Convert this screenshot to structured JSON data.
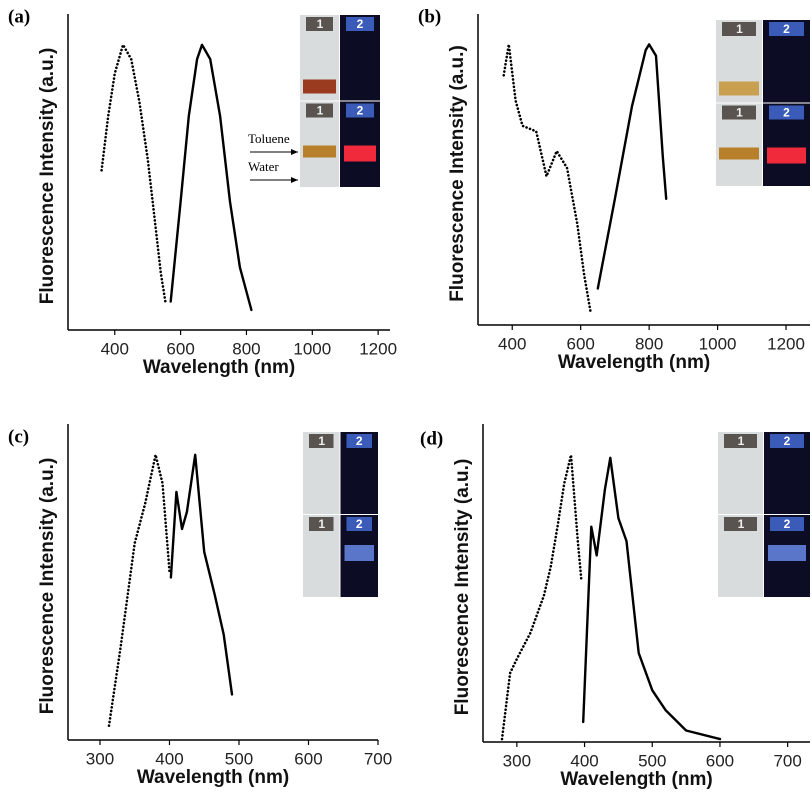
{
  "chart_data": [
    {
      "type": "line",
      "panel_label": "(a)",
      "xlabel": "Wavelength (nm)",
      "ylabel": "Fluorescence Intensity (a.u.)",
      "xlim": [
        258,
        1236
      ],
      "xticks": [
        400,
        600,
        800,
        1000,
        1200
      ],
      "ylim": [
        0,
        1.08
      ],
      "series": [
        {
          "color": "#000000",
          "dash": "dotted",
          "x": [
            360,
            380,
            400,
            425,
            450,
            475,
            500,
            520,
            540,
            555
          ],
          "values": [
            0.56,
            0.75,
            0.9,
            1.0,
            0.95,
            0.8,
            0.6,
            0.4,
            0.2,
            0.09
          ]
        },
        {
          "color": "#000000",
          "dash": "solid",
          "x": [
            570,
            600,
            625,
            650,
            665,
            690,
            720,
            750,
            780,
            815
          ],
          "values": [
            0.1,
            0.45,
            0.75,
            0.95,
            1.0,
            0.95,
            0.75,
            0.45,
            0.22,
            0.07
          ]
        }
      ],
      "inset_labels": [
        "1",
        "2",
        "1",
        "2"
      ],
      "annotations": [
        "Toluene",
        "Water"
      ]
    },
    {
      "type": "line",
      "panel_label": "(b)",
      "xlabel": "Wavelength (nm)",
      "ylabel": "Fluorescence Intensity (a.u.)",
      "xlim": [
        300,
        1270
      ],
      "xticks": [
        400,
        600,
        800,
        1000,
        1200
      ],
      "ylim": [
        0,
        1.08
      ],
      "series": [
        {
          "color": "#000000",
          "dash": "dotted",
          "x": [
            375,
            390,
            410,
            430,
            470,
            500,
            530,
            560,
            590,
            610,
            630
          ],
          "values": [
            0.89,
            1.0,
            0.8,
            0.71,
            0.69,
            0.53,
            0.62,
            0.56,
            0.36,
            0.18,
            0.04
          ]
        },
        {
          "color": "#000000",
          "dash": "solid",
          "x": [
            650,
            700,
            750,
            790,
            800,
            820,
            840,
            850
          ],
          "values": [
            0.13,
            0.45,
            0.78,
            0.98,
            1.0,
            0.96,
            0.6,
            0.45
          ]
        }
      ],
      "inset_labels": [
        "1",
        "2",
        "1",
        "2"
      ]
    },
    {
      "type": "line",
      "panel_label": "(c)",
      "xlabel": "Wavelength (nm)",
      "ylabel": "Fluorescence Intensity (a.u.)",
      "xlim": [
        254,
        700
      ],
      "xticks": [
        300,
        400,
        500,
        600,
        700
      ],
      "ylim": [
        0,
        1.08
      ],
      "series": [
        {
          "color": "#000000",
          "dash": "dotted",
          "x": [
            313,
            330,
            350,
            365,
            380,
            390,
            400
          ],
          "values": [
            0.05,
            0.33,
            0.69,
            0.83,
            1.0,
            0.9,
            0.59
          ]
        },
        {
          "color": "#000000",
          "dash": "solid",
          "x": [
            402,
            410,
            418,
            425,
            437,
            450,
            465,
            478,
            490
          ],
          "values": [
            0.57,
            0.87,
            0.74,
            0.8,
            1.0,
            0.66,
            0.51,
            0.37,
            0.16
          ]
        }
      ],
      "inset_labels": [
        "1",
        "2",
        "1",
        "2"
      ]
    },
    {
      "type": "line",
      "panel_label": "(d)",
      "xlabel": "Wavelength (nm)",
      "ylabel": "Fluorescence Intensity (a.u.)",
      "xlim": [
        250,
        733
      ],
      "xticks": [
        300,
        400,
        500,
        600,
        700
      ],
      "ylim": [
        0,
        1.08
      ],
      "series": [
        {
          "color": "#000000",
          "dash": "dotted",
          "x": [
            278,
            290,
            300,
            320,
            340,
            350,
            360,
            370,
            380,
            390,
            395
          ],
          "values": [
            0.01,
            0.24,
            0.29,
            0.38,
            0.51,
            0.61,
            0.75,
            0.9,
            1.0,
            0.7,
            0.57
          ]
        },
        {
          "color": "#000000",
          "dash": "solid",
          "x": [
            398,
            410,
            418,
            430,
            438,
            450,
            462,
            480,
            500,
            520,
            550,
            600
          ],
          "values": [
            0.07,
            0.75,
            0.65,
            0.88,
            0.99,
            0.78,
            0.7,
            0.31,
            0.18,
            0.11,
            0.04,
            0.01
          ]
        }
      ],
      "inset_labels": [
        "1",
        "2",
        "1",
        "2"
      ]
    }
  ]
}
